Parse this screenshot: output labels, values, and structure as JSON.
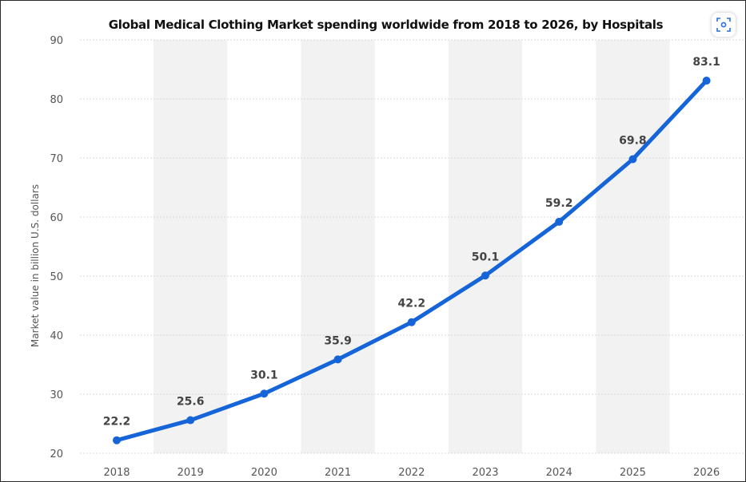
{
  "colors": {
    "line": "#1565d8",
    "band": "#f2f2f2",
    "grid": "#d8d8d8"
  },
  "scan_icon": "scan-lens-icon",
  "chart_data": {
    "type": "line",
    "title": "Global Medical Clothing Market spending worldwide from 2018 to 2026, by Hospitals",
    "xlabel": "",
    "ylabel": "Market value in billion U.S. dollars",
    "categories": [
      "2018",
      "2019",
      "2020",
      "2021",
      "2022",
      "2023",
      "2024",
      "2025",
      "2026"
    ],
    "series": [
      {
        "values": [
          22.2,
          25.6,
          30.1,
          35.9,
          42.2,
          50.1,
          59.2,
          69.8,
          83.1
        ]
      }
    ],
    "data_labels": [
      "22.2",
      "25.6",
      "30.1",
      "35.9",
      "42.2",
      "50.1",
      "59.2",
      "69.8",
      "83.1"
    ],
    "ylim": [
      20,
      90
    ],
    "yticks": [
      "20",
      "30",
      "40",
      "50",
      "60",
      "70",
      "80",
      "90"
    ],
    "grid": true,
    "legend": "none"
  }
}
